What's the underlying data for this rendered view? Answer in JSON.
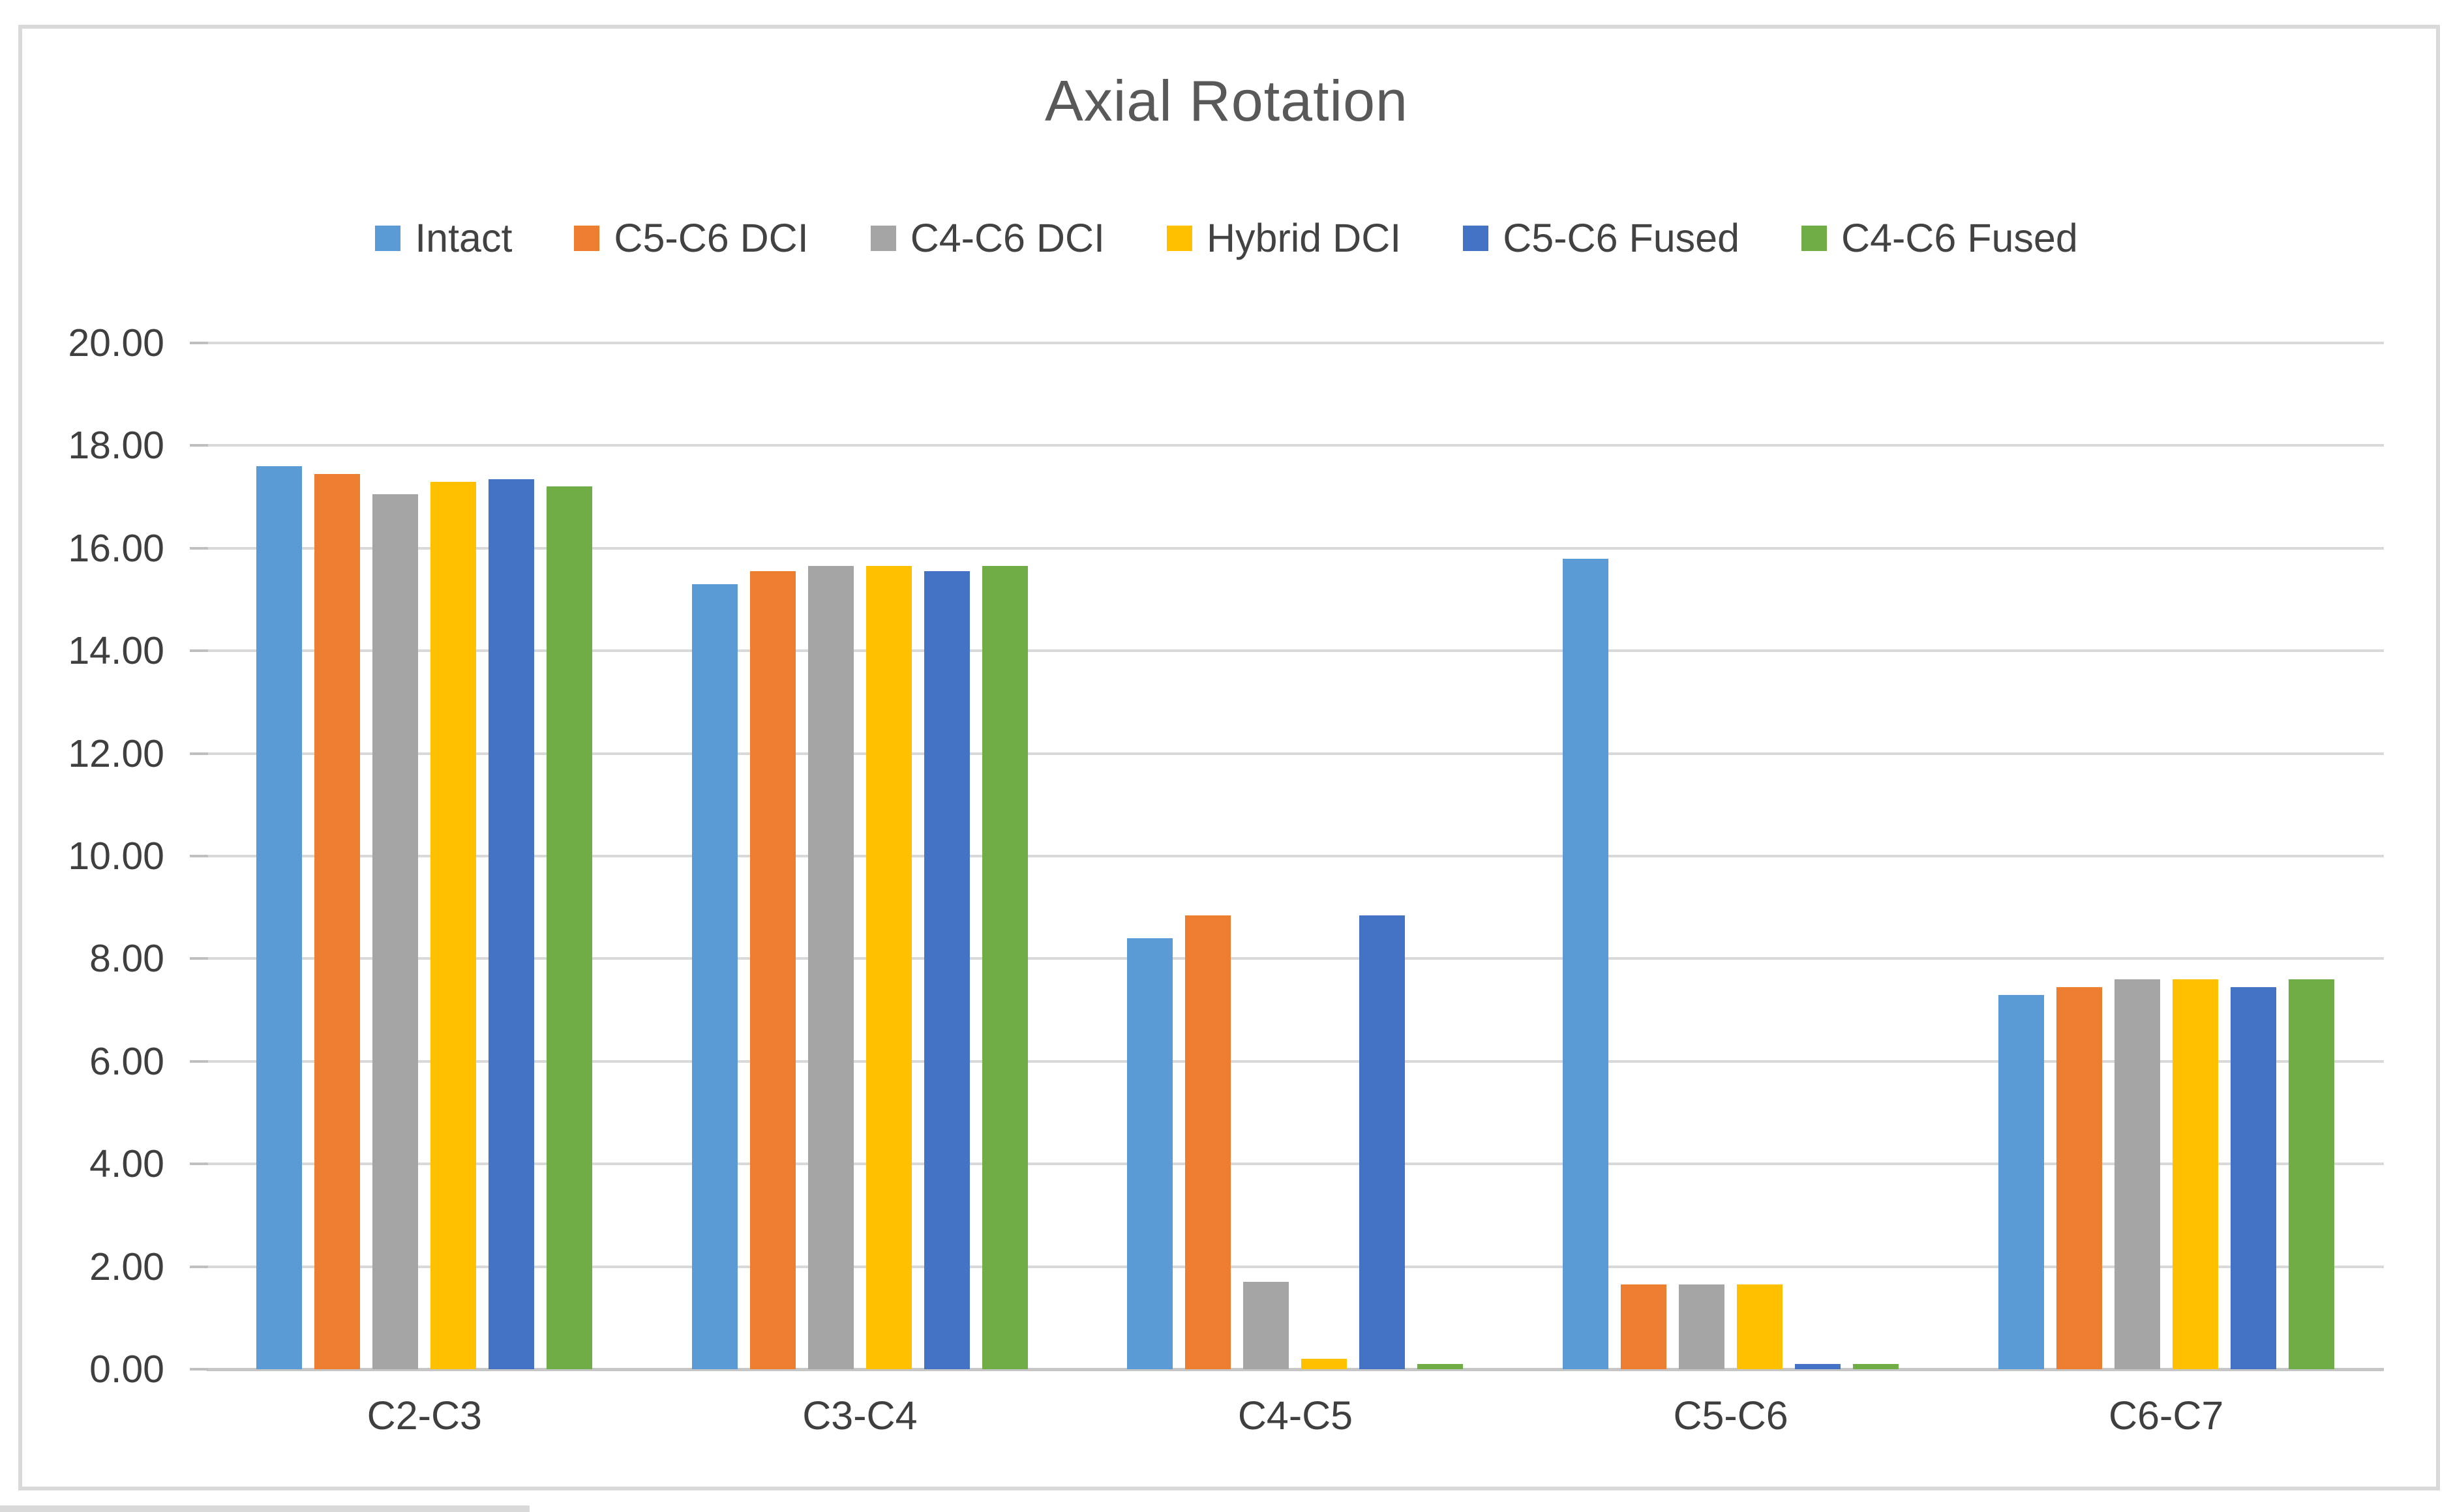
{
  "chart_data": {
    "type": "bar",
    "title": "Axial Rotation",
    "categories": [
      "C2-C3",
      "C3-C4",
      "C4-C5",
      "C5-C6",
      "C6-C7"
    ],
    "series": [
      {
        "name": "Intact",
        "color": "#5B9BD5",
        "values": [
          17.6,
          15.3,
          8.4,
          15.8,
          7.3
        ]
      },
      {
        "name": "C5-C6 DCI",
        "color": "#ED7D31",
        "values": [
          17.45,
          15.55,
          8.85,
          1.65,
          7.45
        ]
      },
      {
        "name": "C4-C6 DCI",
        "color": "#A5A5A5",
        "values": [
          17.05,
          15.65,
          1.7,
          1.65,
          7.6
        ]
      },
      {
        "name": "Hybrid DCI",
        "color": "#FFC000",
        "values": [
          17.3,
          15.65,
          0.2,
          1.65,
          7.6
        ]
      },
      {
        "name": "C5-C6 Fused",
        "color": "#4472C4",
        "values": [
          17.35,
          15.55,
          8.85,
          0.1,
          7.45
        ]
      },
      {
        "name": "C4-C6 Fused",
        "color": "#70AD47",
        "values": [
          17.2,
          15.65,
          0.1,
          0.1,
          7.6
        ]
      }
    ],
    "xlabel": "",
    "ylabel": "",
    "ylim": [
      0,
      20
    ],
    "ytick_step": 2,
    "ytick_labels": [
      "0.00",
      "2.00",
      "4.00",
      "6.00",
      "8.00",
      "10.00",
      "12.00",
      "14.00",
      "16.00",
      "18.00",
      "20.00"
    ],
    "grid": true,
    "legend_position": "top"
  },
  "colors": {
    "chart_border": "#d9d9d9",
    "gridline": "#d9d9d9",
    "axis_line": "#c6c6c6",
    "tick_mark": "#bfbfbf",
    "title_text": "#595959",
    "label_text": "#3f3f3f"
  }
}
